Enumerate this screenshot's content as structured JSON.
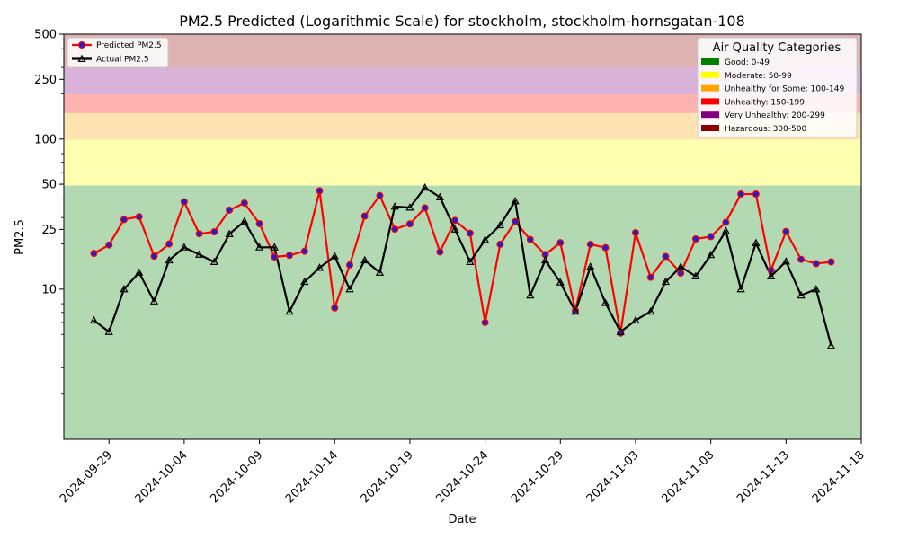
{
  "chart_data": {
    "type": "line",
    "title": "PM2.5 Predicted (Logarithmic Scale) for stockholm, stockholm-hornsgatan-108",
    "xlabel": "Date",
    "ylabel": "PM2.5",
    "yscale": "log",
    "ylim": [
      1,
      500
    ],
    "xlim": [
      "2024-09-26",
      "2024-11-18"
    ],
    "grid": false,
    "y_ticks": [
      {
        "value": 10,
        "label": "10"
      },
      {
        "value": 25,
        "label": "25"
      },
      {
        "value": 50,
        "label": "50"
      },
      {
        "value": 100,
        "label": "100"
      },
      {
        "value": 250,
        "label": "250"
      },
      {
        "value": 500,
        "label": "500"
      }
    ],
    "x_ticks": [
      "2024-09-29",
      "2024-10-04",
      "2024-10-09",
      "2024-10-14",
      "2024-10-19",
      "2024-10-24",
      "2024-10-29",
      "2024-11-03",
      "2024-11-08",
      "2024-11-13",
      "2024-11-18"
    ],
    "x": [
      "2024-09-28",
      "2024-09-29",
      "2024-09-30",
      "2024-10-01",
      "2024-10-02",
      "2024-10-03",
      "2024-10-04",
      "2024-10-05",
      "2024-10-06",
      "2024-10-07",
      "2024-10-08",
      "2024-10-09",
      "2024-10-10",
      "2024-10-11",
      "2024-10-12",
      "2024-10-13",
      "2024-10-14",
      "2024-10-15",
      "2024-10-16",
      "2024-10-17",
      "2024-10-18",
      "2024-10-19",
      "2024-10-20",
      "2024-10-21",
      "2024-10-22",
      "2024-10-23",
      "2024-10-24",
      "2024-10-25",
      "2024-10-26",
      "2024-10-27",
      "2024-10-28",
      "2024-10-29",
      "2024-10-30",
      "2024-10-31",
      "2024-11-01",
      "2024-11-02",
      "2024-11-03",
      "2024-11-04",
      "2024-11-05",
      "2024-11-06",
      "2024-11-07",
      "2024-11-08",
      "2024-11-09",
      "2024-11-10",
      "2024-11-11",
      "2024-11-12",
      "2024-11-13",
      "2024-11-14",
      "2024-11-15",
      "2024-11-16"
    ],
    "series": [
      {
        "name": "Predicted PM2.5",
        "color": "#ff0000",
        "marker": "circle",
        "marker_face": "#1f1fd0",
        "values": [
          17.3,
          19.7,
          29.1,
          30.4,
          16.6,
          20.0,
          38.2,
          23.4,
          24.1,
          33.6,
          37.5,
          27.3,
          16.4,
          16.8,
          17.9,
          45.2,
          7.5,
          14.5,
          30.7,
          42.0,
          25.1,
          27.2,
          34.8,
          17.7,
          28.7,
          23.6,
          6.0,
          19.9,
          28.2,
          21.4,
          17.0,
          20.4,
          7.2,
          19.9,
          18.9,
          5.1,
          23.8,
          12.0,
          16.5,
          12.8,
          21.6,
          22.4,
          27.9,
          43.0,
          43.0,
          13.4,
          24.2,
          15.8,
          14.8,
          15.2
        ]
      },
      {
        "name": "Actual PM2.5",
        "color": "#000000",
        "marker": "triangle",
        "marker_face": "none",
        "values": [
          6.2,
          5.2,
          10.0,
          12.9,
          8.3,
          15.6,
          19.0,
          17.0,
          15.2,
          23.3,
          28.3,
          19.0,
          19.0,
          7.1,
          11.2,
          13.9,
          16.6,
          10.0,
          15.6,
          12.9,
          35.5,
          35.0,
          47.5,
          41.0,
          25.0,
          15.2,
          21.3,
          26.7,
          38.6,
          9.1,
          15.6,
          11.1,
          7.1,
          14.1,
          8.1,
          5.2,
          6.2,
          7.1,
          11.2,
          14.1,
          12.2,
          16.9,
          24.4,
          10.0,
          20.3,
          12.2,
          15.3,
          9.1,
          10.0,
          4.2
        ]
      }
    ],
    "legend": {
      "position": "upper-left"
    },
    "category_legend": {
      "title": "Air Quality Categories",
      "position": "upper-right",
      "items": [
        {
          "label": "Good: 0-49",
          "color": "#008000"
        },
        {
          "label": "Moderate: 50-99",
          "color": "#ffff00"
        },
        {
          "label": "Unhealthy for Some: 100-149",
          "color": "#ffa500"
        },
        {
          "label": "Unhealthy: 150-199",
          "color": "#ff0000"
        },
        {
          "label": "Very Unhealthy: 200-299",
          "color": "#800080"
        },
        {
          "label": "Hazardous: 300-500",
          "color": "#8b0000"
        }
      ]
    },
    "bands": [
      {
        "from": 1,
        "to": 49,
        "color": "#008000"
      },
      {
        "from": 49,
        "to": 99,
        "color": "#ffff00"
      },
      {
        "from": 99,
        "to": 149,
        "color": "#ffa500"
      },
      {
        "from": 149,
        "to": 199,
        "color": "#ff0000"
      },
      {
        "from": 199,
        "to": 299,
        "color": "#800080"
      },
      {
        "from": 299,
        "to": 500,
        "color": "#8b0000"
      }
    ]
  }
}
